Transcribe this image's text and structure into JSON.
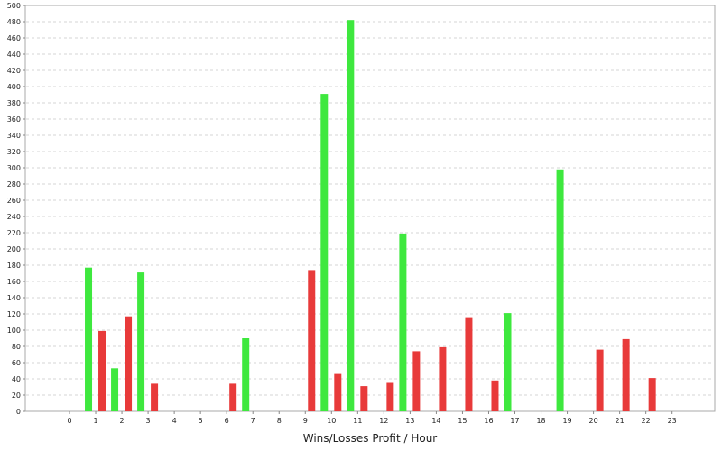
{
  "chart_data": {
    "type": "bar",
    "title": "",
    "xlabel": "Wins/Losses Profit / Hour",
    "ylabel": "",
    "ylim": [
      0,
      500
    ],
    "y_tick_step": 20,
    "grid": true,
    "legend": "none",
    "categories": [
      "0",
      "1",
      "2",
      "3",
      "4",
      "5",
      "6",
      "7",
      "8",
      "9",
      "10",
      "11",
      "12",
      "13",
      "14",
      "15",
      "16",
      "17",
      "18",
      "19",
      "20",
      "21",
      "22",
      "23"
    ],
    "series": [
      {
        "color": "#3ee83e",
        "values": [
          0,
          177,
          53,
          171,
          0,
          0,
          0,
          90,
          0,
          0,
          391,
          482,
          0,
          219,
          0,
          0,
          0,
          121,
          0,
          298,
          0,
          0,
          0,
          0
        ]
      },
      {
        "color": "#e83a3a",
        "values": [
          0,
          99,
          117,
          34,
          0,
          0,
          34,
          0,
          0,
          174,
          46,
          31,
          35,
          74,
          79,
          116,
          38,
          0,
          0,
          0,
          76,
          89,
          41,
          0
        ]
      }
    ]
  }
}
